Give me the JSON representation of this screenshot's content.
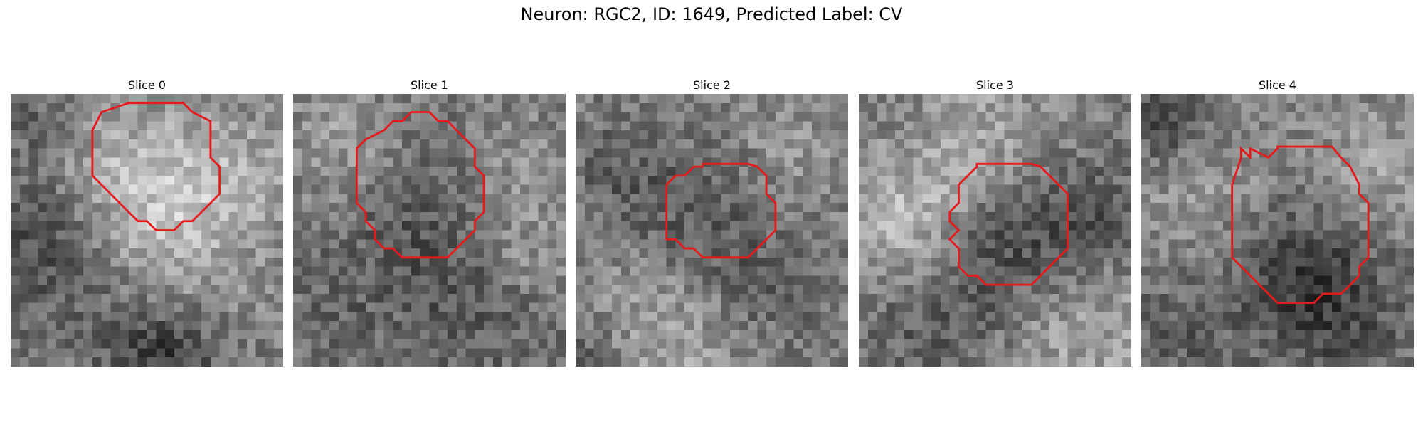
{
  "figure": {
    "title": "Neuron: RGC2, ID: 1649, Predicted Label: CV"
  },
  "colors": {
    "outline": "#e41a1c"
  },
  "panels": [
    {
      "title": "Slice 0",
      "seed": 11,
      "blobs": [
        [
          0.45,
          0.35,
          0.22,
          70
        ],
        [
          0.15,
          0.55,
          0.2,
          -60
        ],
        [
          0.55,
          0.95,
          0.15,
          -70
        ],
        [
          0.85,
          0.3,
          0.15,
          40
        ],
        [
          0.65,
          0.6,
          0.2,
          30
        ],
        [
          0.1,
          0.1,
          0.1,
          -30
        ]
      ]
    },
    {
      "title": "Slice 1",
      "seed": 23,
      "blobs": [
        [
          0.45,
          0.45,
          0.25,
          -35
        ],
        [
          0.2,
          0.2,
          0.15,
          40
        ],
        [
          0.8,
          0.3,
          0.15,
          30
        ],
        [
          0.7,
          0.8,
          0.2,
          -30
        ],
        [
          0.15,
          0.85,
          0.15,
          -20
        ],
        [
          0.85,
          0.6,
          0.12,
          35
        ]
      ]
    },
    {
      "title": "Slice 2",
      "seed": 37,
      "blobs": [
        [
          0.45,
          0.5,
          0.2,
          -40
        ],
        [
          0.35,
          0.85,
          0.25,
          45
        ],
        [
          0.8,
          0.2,
          0.15,
          25
        ],
        [
          0.15,
          0.3,
          0.15,
          -25
        ],
        [
          0.7,
          0.75,
          0.18,
          -30
        ],
        [
          0.05,
          0.95,
          0.1,
          -40
        ]
      ]
    },
    {
      "title": "Slice 3",
      "seed": 53,
      "blobs": [
        [
          0.55,
          0.55,
          0.18,
          -55
        ],
        [
          0.35,
          0.2,
          0.22,
          55
        ],
        [
          0.15,
          0.5,
          0.15,
          45
        ],
        [
          0.85,
          0.45,
          0.15,
          -40
        ],
        [
          0.8,
          0.9,
          0.25,
          40
        ],
        [
          0.3,
          0.9,
          0.2,
          -35
        ],
        [
          0.2,
          0.1,
          0.12,
          -30
        ]
      ]
    },
    {
      "title": "Slice 4",
      "seed": 71,
      "blobs": [
        [
          0.55,
          0.6,
          0.22,
          -60
        ],
        [
          0.1,
          0.1,
          0.12,
          -50
        ],
        [
          0.3,
          0.4,
          0.2,
          40
        ],
        [
          0.85,
          0.3,
          0.18,
          40
        ],
        [
          0.75,
          0.85,
          0.18,
          -35
        ],
        [
          0.1,
          0.9,
          0.15,
          -30
        ]
      ]
    }
  ]
}
